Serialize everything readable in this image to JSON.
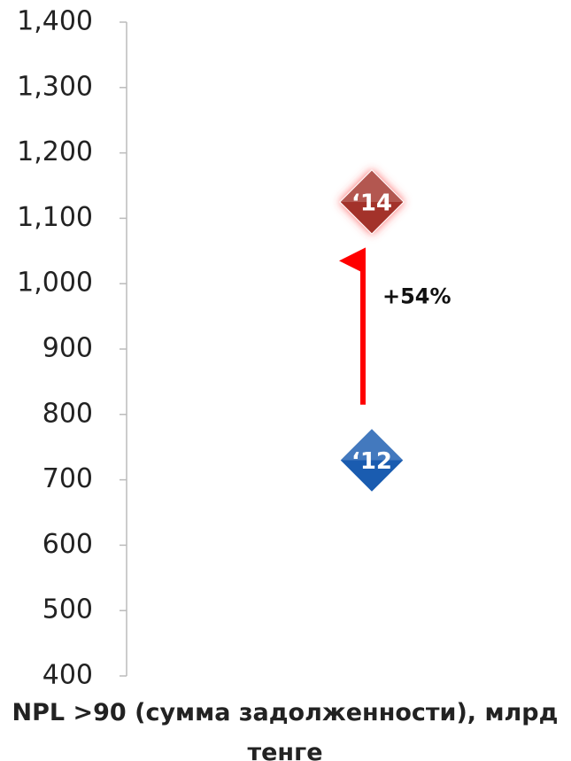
{
  "chart_data": {
    "type": "scatter",
    "x_label": "NPL >90 (сумма задолженности), млрд тенге",
    "series": [
      {
        "name": "‘12",
        "color": "#1a5cb0",
        "values": [
          730
        ]
      },
      {
        "name": "‘14",
        "color": "#a3302a",
        "values": [
          1125
        ]
      }
    ],
    "annotations": [
      {
        "text": "+54%",
        "from": 815,
        "to": 1035,
        "color": "#ff0000"
      }
    ],
    "ylim": [
      400,
      1400
    ],
    "yticks": [
      400,
      500,
      600,
      700,
      800,
      900,
      {
        "value": 1000,
        "label": "1,000"
      },
      {
        "value": 1100,
        "label": "1,100"
      },
      {
        "value": 1200,
        "label": "1,200"
      },
      {
        "value": 1300,
        "label": "1,300"
      },
      {
        "value": 1400,
        "label": "1,400"
      }
    ]
  }
}
